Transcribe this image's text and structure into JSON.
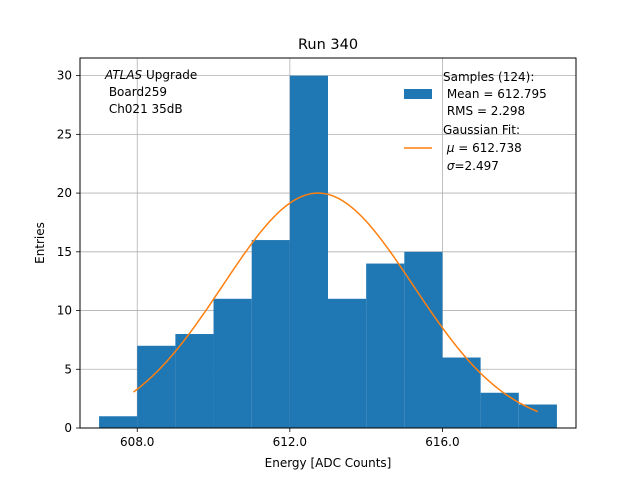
{
  "chart_data": {
    "type": "histogram",
    "title": "Run 340",
    "xlabel": "Energy [ADC Counts]",
    "ylabel": "Entries",
    "xlim": [
      606.5,
      619.5
    ],
    "ylim": [
      0,
      31.5
    ],
    "x_ticks": [
      608.0,
      612.0,
      616.0
    ],
    "x_tick_labels": [
      "608.0",
      "612.0",
      "616.0"
    ],
    "y_ticks": [
      0,
      5,
      10,
      15,
      20,
      25,
      30
    ],
    "y_tick_labels": [
      "0",
      "5",
      "10",
      "15",
      "20",
      "25",
      "30"
    ],
    "grid": true,
    "bar_color": "#1f77b4",
    "fit_color": "#ff7f0e",
    "bins": [
      {
        "left": 607,
        "right": 608,
        "count": 1
      },
      {
        "left": 608,
        "right": 609,
        "count": 7
      },
      {
        "left": 609,
        "right": 610,
        "count": 8
      },
      {
        "left": 610,
        "right": 611,
        "count": 11
      },
      {
        "left": 611,
        "right": 612,
        "count": 16
      },
      {
        "left": 612,
        "right": 613,
        "count": 30
      },
      {
        "left": 613,
        "right": 614,
        "count": 11
      },
      {
        "left": 614,
        "right": 615,
        "count": 14
      },
      {
        "left": 615,
        "right": 616,
        "count": 15
      },
      {
        "left": 616,
        "right": 617,
        "count": 6
      },
      {
        "left": 617,
        "right": 618,
        "count": 3
      },
      {
        "left": 618,
        "right": 619,
        "count": 2
      }
    ],
    "fit": {
      "function": "gaussian",
      "mu": 612.738,
      "sigma": 2.497,
      "amplitude": 20.0,
      "x_range": [
        607.9,
        618.5
      ]
    },
    "annotation": {
      "line1_italic": "ATLAS",
      "line1_rest": " Upgrade",
      "line2": " Board259",
      "line3": " Ch021 35dB"
    },
    "legend": {
      "placement": "top-right",
      "samples_lines": [
        "Samples (124):",
        " Mean = 612.795",
        " RMS = 2.298"
      ],
      "fit_lines": [
        "Gaussian Fit:",
        " $\\mu$ = 612.738",
        " $\\sigma$=2.497"
      ],
      "fit_line_mu_prefix": " ",
      "fit_line_mu_symbol": "μ",
      "fit_line_mu_rest": " = 612.738",
      "fit_line_sigma_prefix": " ",
      "fit_line_sigma_symbol": "σ",
      "fit_line_sigma_rest": "=2.497"
    }
  }
}
